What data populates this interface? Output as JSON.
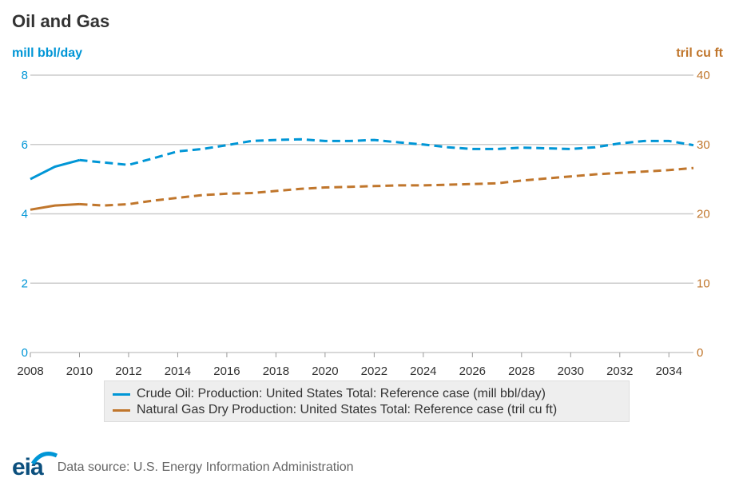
{
  "chart_title": "Oil and Gas",
  "left_axis_unit": "mill bbl/day",
  "right_axis_unit": "tril cu ft",
  "footer": {
    "logo_text": "eia",
    "source": "Data source: U.S. Energy Information Administration"
  },
  "colors": {
    "oil": "#0096d6",
    "gas": "#c0762c",
    "grid": "#cccccc"
  },
  "chart_data": {
    "type": "line",
    "title": "Oil and Gas",
    "x": [
      2008,
      2009,
      2010,
      2011,
      2012,
      2013,
      2014,
      2015,
      2016,
      2017,
      2018,
      2019,
      2020,
      2021,
      2022,
      2023,
      2024,
      2025,
      2026,
      2027,
      2028,
      2029,
      2030,
      2031,
      2032,
      2033,
      2034,
      2035
    ],
    "xlim": [
      2008,
      2035
    ],
    "xticks": [
      "2008",
      "2010",
      "2012",
      "2014",
      "2016",
      "2018",
      "2020",
      "2022",
      "2024",
      "2026",
      "2028",
      "2030",
      "2032",
      "2034"
    ],
    "y_left": {
      "label": "mill bbl/day",
      "lim": [
        0,
        8
      ],
      "ticks": [
        "0",
        "2",
        "4",
        "6",
        "8"
      ]
    },
    "y_right": {
      "label": "tril cu ft",
      "lim": [
        0,
        40
      ],
      "ticks": [
        "0",
        "10",
        "20",
        "30",
        "40"
      ]
    },
    "grid": true,
    "legend_position": "bottom",
    "series": [
      {
        "name": "Crude Oil: Production: United States Total: Reference case (mill bbl/day)",
        "axis": "left",
        "solid_through": 2010,
        "values": [
          5.0,
          5.36,
          5.55,
          5.48,
          5.41,
          5.6,
          5.8,
          5.87,
          5.98,
          6.1,
          6.13,
          6.15,
          6.1,
          6.1,
          6.13,
          6.06,
          6.0,
          5.92,
          5.87,
          5.87,
          5.91,
          5.89,
          5.87,
          5.92,
          6.03,
          6.1,
          6.1,
          5.98
        ]
      },
      {
        "name": "Natural Gas Dry Production: United States Total: Reference case (tril cu ft)",
        "axis": "right",
        "solid_through": 2010,
        "values": [
          20.6,
          21.2,
          21.4,
          21.2,
          21.4,
          21.9,
          22.3,
          22.7,
          22.9,
          23.0,
          23.3,
          23.6,
          23.8,
          23.9,
          24.0,
          24.1,
          24.1,
          24.2,
          24.3,
          24.4,
          24.8,
          25.1,
          25.4,
          25.7,
          25.9,
          26.1,
          26.3,
          26.6
        ]
      }
    ]
  }
}
